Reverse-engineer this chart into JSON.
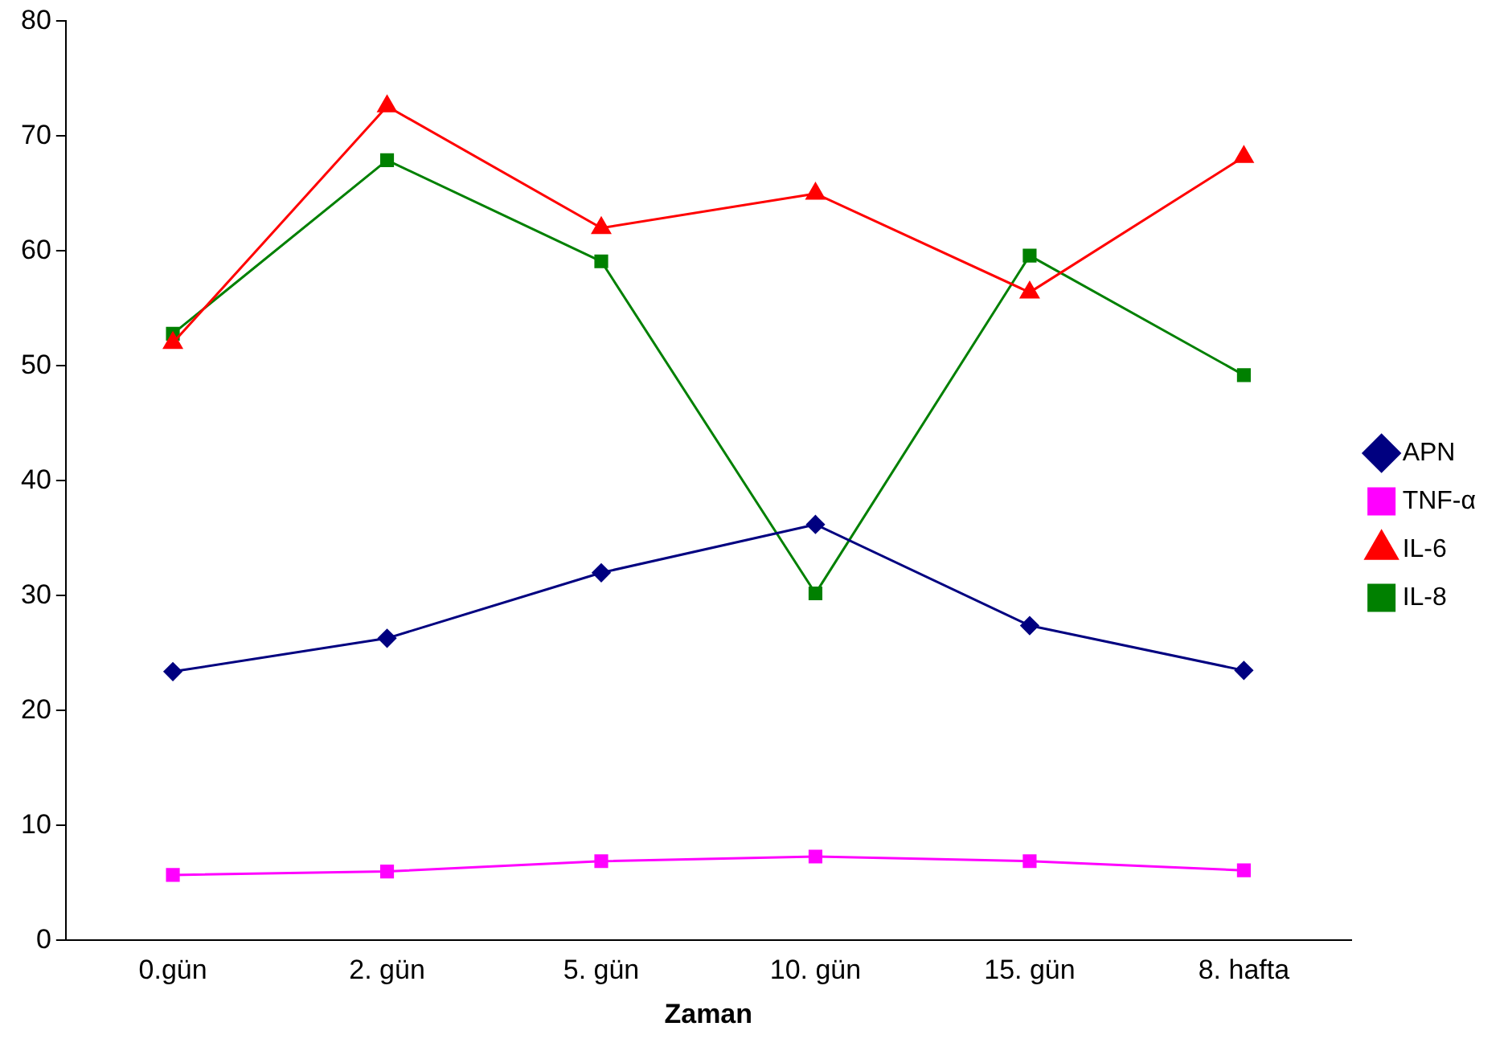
{
  "chart_data": {
    "type": "line",
    "xlabel": "Zaman",
    "categories": [
      "0.gün",
      "2. gün",
      "5. gün",
      "10. gün",
      "15. gün",
      "8. hafta"
    ],
    "ylim": [
      0,
      80
    ],
    "yticks": [
      0,
      10,
      20,
      30,
      40,
      50,
      60,
      70,
      80
    ],
    "grid": false,
    "legend": "right",
    "series": [
      {
        "name": "APN",
        "color": "#000080",
        "marker": "diamond",
        "values": [
          23.4,
          26.3,
          32.0,
          36.2,
          27.4,
          23.5
        ]
      },
      {
        "name": "TNF-α",
        "color": "#ff00ff",
        "marker": "square",
        "values": [
          5.7,
          6.0,
          6.9,
          7.3,
          6.9,
          6.1
        ]
      },
      {
        "name": "IL-6",
        "color": "#ff0000",
        "marker": "triangle",
        "values": [
          52.0,
          72.6,
          62.0,
          65.0,
          56.4,
          68.2
        ]
      },
      {
        "name": "IL-8",
        "color": "#008000",
        "marker": "square",
        "values": [
          52.8,
          67.9,
          59.1,
          30.2,
          59.6,
          49.2
        ]
      }
    ]
  }
}
